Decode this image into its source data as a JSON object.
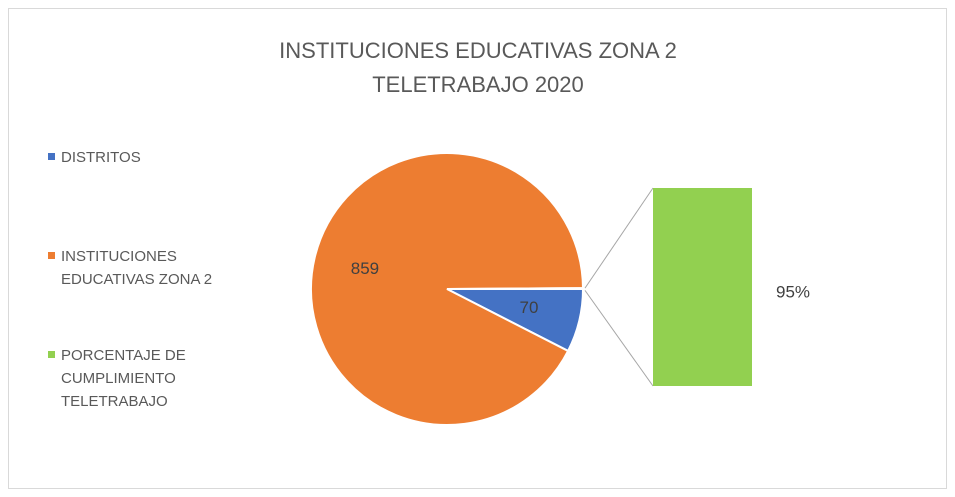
{
  "chart_data": {
    "type": "bar-of-pie",
    "title": "INSTITUCIONES EDUCATIVAS ZONA 2 TELETRABAJO 2020",
    "categories": [
      "DISTRITOS",
      "INSTITUCIONES EDUCATIVAS ZONA 2",
      "PORCENTAJE DE CUMPLIMIENTO TELETRABAJO"
    ],
    "values": [
      70,
      859,
      0.95
    ],
    "value_labels": [
      "70",
      "859",
      "95%"
    ],
    "colors": [
      "#4472c4",
      "#ed7d31",
      "#92d050"
    ],
    "legend": "left"
  }
}
